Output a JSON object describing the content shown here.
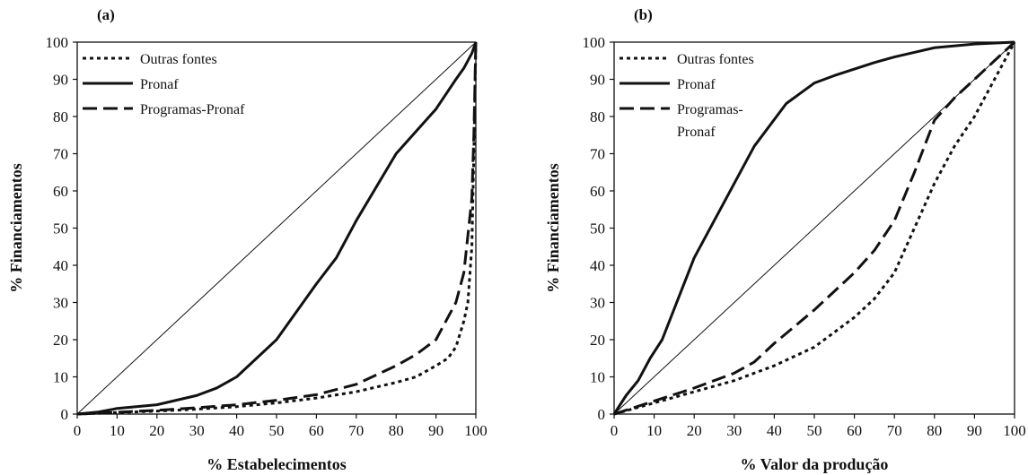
{
  "chart_data": [
    {
      "type": "line",
      "panel_label": "(a)",
      "xlabel": "% Estabelecimentos",
      "ylabel": "% Financiamentos",
      "xlim": [
        0,
        100
      ],
      "ylim": [
        0,
        100
      ],
      "xticks": [
        0,
        10,
        20,
        30,
        40,
        50,
        60,
        70,
        80,
        90,
        100
      ],
      "yticks": [
        0,
        10,
        20,
        30,
        40,
        50,
        60,
        70,
        80,
        90,
        100
      ],
      "grid": false,
      "legend_position": "top-left",
      "diagonal_line": true,
      "series": [
        {
          "name": "Outras fontes",
          "style": "dotted",
          "x": [
            0,
            5,
            10,
            20,
            30,
            40,
            50,
            60,
            70,
            80,
            85,
            90,
            93,
            95,
            97,
            98,
            99,
            99.5,
            100
          ],
          "y": [
            0,
            0.2,
            0.4,
            0.8,
            1.3,
            2.0,
            3.0,
            4.3,
            6.0,
            8.5,
            10,
            13,
            15,
            18,
            25,
            30,
            45,
            70,
            100
          ]
        },
        {
          "name": "Pronaf",
          "style": "solid",
          "x": [
            0,
            5,
            10,
            20,
            30,
            35,
            40,
            50,
            60,
            65,
            70,
            80,
            90,
            95,
            97,
            99,
            100
          ],
          "y": [
            0,
            0.5,
            1.5,
            2.5,
            5,
            7,
            10,
            20,
            35,
            42,
            52,
            70,
            82,
            90,
            93,
            97,
            100
          ]
        },
        {
          "name": "Programas-Pronaf",
          "style": "dashed",
          "x": [
            0,
            5,
            10,
            20,
            30,
            40,
            50,
            60,
            70,
            80,
            85,
            90,
            92,
            95,
            97,
            98,
            99,
            99.5,
            100
          ],
          "y": [
            0,
            0.2,
            0.5,
            1.0,
            1.7,
            2.5,
            3.7,
            5.2,
            8.0,
            13,
            16,
            20,
            24,
            30,
            38,
            48,
            58,
            75,
            100
          ]
        }
      ]
    },
    {
      "type": "line",
      "panel_label": "(b)",
      "xlabel": "% Valor da produção",
      "ylabel": "% Financiamentos",
      "xlim": [
        0,
        100
      ],
      "ylim": [
        0,
        100
      ],
      "xticks": [
        0,
        10,
        20,
        30,
        40,
        50,
        60,
        70,
        80,
        90,
        100
      ],
      "yticks": [
        0,
        10,
        20,
        30,
        40,
        50,
        60,
        70,
        80,
        90,
        100
      ],
      "grid": false,
      "legend_position": "top-left",
      "diagonal_line": true,
      "series": [
        {
          "name": "Outras fontes",
          "style": "dotted",
          "x": [
            0,
            10,
            20,
            30,
            40,
            50,
            60,
            65,
            70,
            75,
            80,
            85,
            90,
            95,
            100
          ],
          "y": [
            0,
            3,
            6,
            9,
            13,
            18,
            26,
            31,
            38,
            50,
            62,
            72,
            80,
            90,
            100
          ]
        },
        {
          "name": "Pronaf",
          "style": "solid",
          "x": [
            0,
            3,
            6,
            9,
            12,
            20,
            30,
            35,
            43,
            50,
            55,
            65,
            70,
            80,
            90,
            100
          ],
          "y": [
            0,
            5,
            9,
            15,
            20,
            42,
            62,
            72,
            83.5,
            89,
            91,
            94.5,
            96,
            98.5,
            99.5,
            100
          ]
        },
        {
          "name": "Programas-\nPronaf",
          "style": "dashed",
          "x": [
            0,
            10,
            20,
            30,
            35,
            40,
            50,
            60,
            65,
            70,
            75,
            80,
            85,
            90,
            95,
            100
          ],
          "y": [
            0,
            3.5,
            7,
            11,
            14,
            19,
            28,
            38,
            44,
            52,
            65,
            79,
            85,
            90,
            95,
            100
          ]
        }
      ]
    }
  ]
}
